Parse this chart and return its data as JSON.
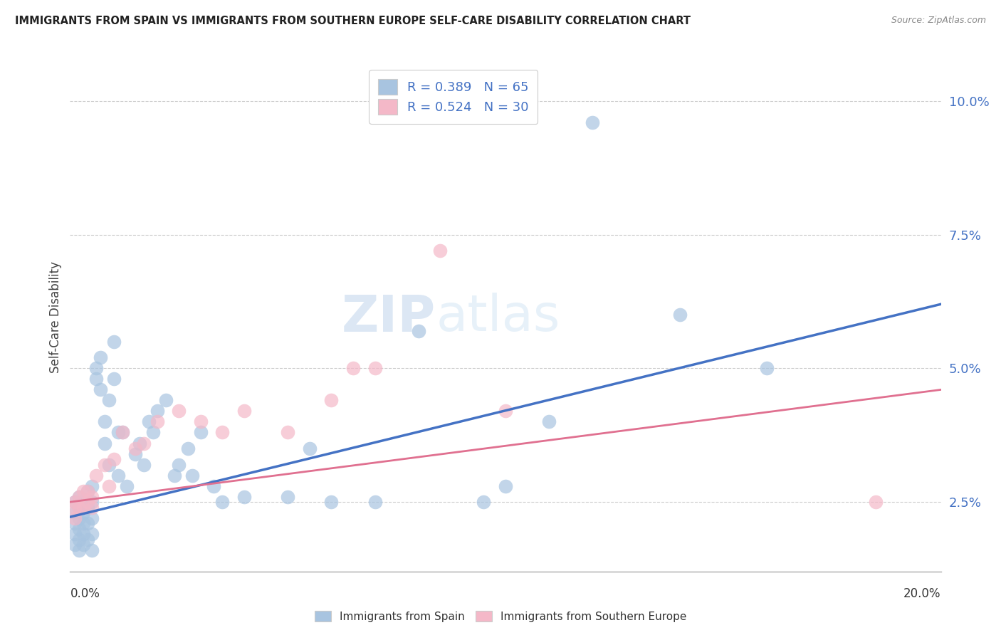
{
  "title": "IMMIGRANTS FROM SPAIN VS IMMIGRANTS FROM SOUTHERN EUROPE SELF-CARE DISABILITY CORRELATION CHART",
  "source": "Source: ZipAtlas.com",
  "ylabel": "Self-Care Disability",
  "ylabel_right_ticks": [
    "2.5%",
    "5.0%",
    "7.5%",
    "10.0%"
  ],
  "ylabel_right_vals": [
    0.025,
    0.05,
    0.075,
    0.1
  ],
  "xmin": 0.0,
  "xmax": 0.2,
  "ymin": 0.012,
  "ymax": 0.107,
  "legend_color1": "#a8c4e0",
  "legend_color2": "#f4b8c8",
  "scatter1_color": "#a8c4e0",
  "scatter2_color": "#f4b8c8",
  "line1_color": "#4472c4",
  "line2_color": "#e07090",
  "watermark_zip": "ZIP",
  "watermark_atlas": "atlas",
  "spain_x": [
    0.001,
    0.001,
    0.001,
    0.001,
    0.001,
    0.002,
    0.002,
    0.002,
    0.002,
    0.002,
    0.002,
    0.003,
    0.003,
    0.003,
    0.003,
    0.003,
    0.004,
    0.004,
    0.004,
    0.004,
    0.005,
    0.005,
    0.005,
    0.005,
    0.005,
    0.006,
    0.006,
    0.007,
    0.007,
    0.008,
    0.008,
    0.009,
    0.009,
    0.01,
    0.01,
    0.011,
    0.011,
    0.012,
    0.013,
    0.015,
    0.016,
    0.017,
    0.018,
    0.019,
    0.02,
    0.022,
    0.024,
    0.025,
    0.027,
    0.028,
    0.03,
    0.033,
    0.035,
    0.04,
    0.05,
    0.055,
    0.06,
    0.07,
    0.08,
    0.095,
    0.1,
    0.11,
    0.12,
    0.14,
    0.16
  ],
  "spain_y": [
    0.025,
    0.023,
    0.021,
    0.019,
    0.017,
    0.026,
    0.024,
    0.022,
    0.02,
    0.018,
    0.016,
    0.025,
    0.023,
    0.021,
    0.019,
    0.017,
    0.027,
    0.024,
    0.021,
    0.018,
    0.028,
    0.025,
    0.022,
    0.019,
    0.016,
    0.05,
    0.048,
    0.052,
    0.046,
    0.04,
    0.036,
    0.044,
    0.032,
    0.055,
    0.048,
    0.038,
    0.03,
    0.038,
    0.028,
    0.034,
    0.036,
    0.032,
    0.04,
    0.038,
    0.042,
    0.044,
    0.03,
    0.032,
    0.035,
    0.03,
    0.038,
    0.028,
    0.025,
    0.026,
    0.026,
    0.035,
    0.025,
    0.025,
    0.057,
    0.025,
    0.028,
    0.04,
    0.096,
    0.06,
    0.05
  ],
  "south_x": [
    0.001,
    0.001,
    0.001,
    0.002,
    0.002,
    0.003,
    0.003,
    0.004,
    0.004,
    0.005,
    0.005,
    0.006,
    0.008,
    0.009,
    0.01,
    0.012,
    0.015,
    0.017,
    0.02,
    0.025,
    0.03,
    0.035,
    0.04,
    0.05,
    0.06,
    0.065,
    0.07,
    0.085,
    0.1,
    0.185
  ],
  "south_y": [
    0.025,
    0.024,
    0.022,
    0.026,
    0.024,
    0.027,
    0.024,
    0.027,
    0.025,
    0.026,
    0.024,
    0.03,
    0.032,
    0.028,
    0.033,
    0.038,
    0.035,
    0.036,
    0.04,
    0.042,
    0.04,
    0.038,
    0.042,
    0.038,
    0.044,
    0.05,
    0.05,
    0.072,
    0.042,
    0.025
  ],
  "line1_x0": 0.0,
  "line1_y0": 0.0222,
  "line1_x1": 0.2,
  "line1_y1": 0.062,
  "line2_x0": 0.0,
  "line2_y0": 0.025,
  "line2_x1": 0.2,
  "line2_y1": 0.046
}
